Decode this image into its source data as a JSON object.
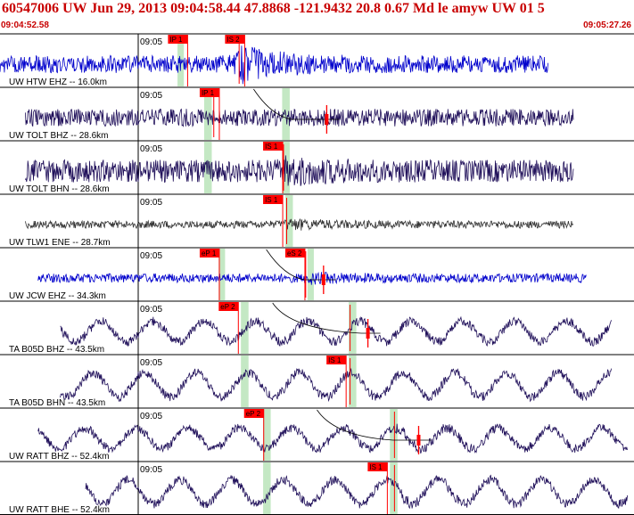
{
  "header": {
    "title": "60547006 UW Jun 29, 2013 09:04:58.44   47.8868 -121.9432 20.8 0.67 Md le amyw UW 01   5",
    "start_time": "09:04:52.58",
    "end_time": "09:05:27.26"
  },
  "colors": {
    "red": "#ff0000",
    "pick_box": "#ff0000",
    "pick_window": "#c4e8c4",
    "trace_blue": "#0000cc",
    "trace_navy": "#20105a",
    "trace_gray": "#333333",
    "grid": "#000000"
  },
  "tick_label": "09:05",
  "traces": [
    {
      "label": "UW HTW EHZ -- 16.0km",
      "color": "#0000cc",
      "kind": "spiky",
      "amp": 0.35,
      "start": 0.0,
      "end": 0.865,
      "burst": 0.38,
      "burst_amp": 2.4,
      "phases": [
        {
          "name": "IP 1",
          "t": 0.265
        },
        {
          "name": "IS 2",
          "t": 0.355
        }
      ],
      "windows": [
        [
          0.28,
          0.29
        ]
      ],
      "curve": null
    },
    {
      "label": "UW TOLT BHZ -- 28.6km",
      "color": "#20105a",
      "kind": "spiky",
      "amp": 0.35,
      "start": 0.04,
      "end": 0.905,
      "burst": 0.34,
      "burst_amp": 0.9,
      "phases": [
        {
          "name": "IP 1",
          "t": 0.315
        }
      ],
      "windows": [
        [
          0.322,
          0.334
        ],
        [
          0.445,
          0.457
        ]
      ],
      "curve": [
        0.4,
        0.46,
        0.535
      ]
    },
    {
      "label": "UW TOLT BHN -- 28.6km",
      "color": "#20105a",
      "kind": "spiky",
      "amp": 0.45,
      "start": 0.04,
      "end": 0.905,
      "burst": 0.45,
      "burst_amp": 1.6,
      "phases": [
        {
          "name": "IS 1",
          "t": 0.415
        }
      ],
      "windows": [
        [
          0.322,
          0.334
        ],
        [
          0.445,
          0.457
        ]
      ],
      "curve": null
    },
    {
      "label": "UW TLW1 ENE -- 28.7km",
      "color": "#333333",
      "kind": "spiky",
      "amp": 0.15,
      "start": 0.04,
      "end": 0.905,
      "burst": 0.455,
      "burst_amp": 1.9,
      "phases": [
        {
          "name": "IS 1",
          "t": 0.415
        }
      ],
      "windows": [
        [
          0.45,
          0.462
        ]
      ],
      "curve": null
    },
    {
      "label": "UW JCW EHZ -- 34.3km",
      "color": "#0000cc",
      "kind": "spiky",
      "amp": 0.18,
      "start": 0.06,
      "end": 0.925,
      "burst": 0.485,
      "burst_amp": 1.6,
      "phases": [
        {
          "name": "eP 1",
          "t": 0.315
        },
        {
          "name": "eS 2",
          "t": 0.45
        }
      ],
      "windows": [
        [
          0.345,
          0.355
        ],
        [
          0.485,
          0.495
        ]
      ],
      "curve": [
        0.42,
        0.48,
        0.53
      ]
    },
    {
      "label": "TA B05D BHZ -- 43.5km",
      "color": "#20105a",
      "kind": "wave",
      "amp": 0.55,
      "start": 0.095,
      "end": 0.965,
      "burst": 0.555,
      "burst_amp": 1.0,
      "phases": [
        {
          "name": "eP 2",
          "t": 0.345
        }
      ],
      "windows": [
        [
          0.38,
          0.392
        ],
        [
          0.55,
          0.562
        ]
      ],
      "curve": [
        0.43,
        0.57,
        0.6
      ]
    },
    {
      "label": "TA B05D BHN -- 43.5km",
      "color": "#20105a",
      "kind": "wave",
      "amp": 0.65,
      "start": 0.095,
      "end": 0.965,
      "burst": 0.555,
      "burst_amp": 1.2,
      "phases": [
        {
          "name": "IS 1",
          "t": 0.515
        }
      ],
      "windows": [
        [
          0.38,
          0.392
        ],
        [
          0.55,
          0.562
        ]
      ],
      "curve": null
    },
    {
      "label": "UW RATT BHZ -- 52.4km",
      "color": "#20105a",
      "kind": "wave",
      "amp": 0.55,
      "start": 0.06,
      "end": 0.99,
      "burst": 0.625,
      "burst_amp": 1.3,
      "phases": [
        {
          "name": "eP 2",
          "t": 0.385
        }
      ],
      "windows": [
        [
          0.415,
          0.427
        ],
        [
          0.615,
          0.627
        ]
      ],
      "curve": [
        0.5,
        0.62,
        0.68
      ]
    },
    {
      "label": "UW RATT BHE -- 52.4km",
      "color": "#20105a",
      "kind": "wave",
      "amp": 0.65,
      "start": 0.135,
      "end": 0.99,
      "burst": 0.625,
      "burst_amp": 1.4,
      "phases": [
        {
          "name": "IS 1",
          "t": 0.58
        }
      ],
      "windows": [
        [
          0.415,
          0.427
        ],
        [
          0.615,
          0.627
        ]
      ],
      "curve": null
    }
  ]
}
